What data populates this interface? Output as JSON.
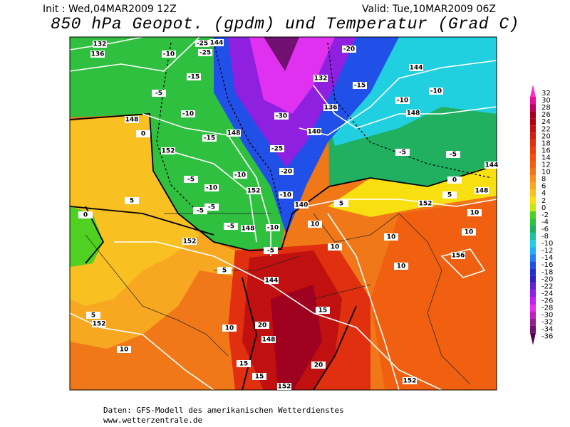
{
  "header": {
    "init": "Init : Wed,04MAR2009 12Z",
    "valid": "Valid: Tue,10MAR2009 06Z",
    "title": "850 hPa Geopot. (gpdm) und Temperatur (Grad C)"
  },
  "colorbar": {
    "ticks": [
      32,
      30,
      28,
      26,
      24,
      22,
      20,
      18,
      16,
      14,
      12,
      10,
      8,
      6,
      4,
      2,
      0,
      -2,
      -4,
      -6,
      -8,
      -10,
      -12,
      -14,
      -16,
      -18,
      -20,
      -22,
      -24,
      -26,
      -28,
      -30,
      -32,
      -34,
      -36
    ],
    "colors": [
      "#ff2dc8",
      "#e8109a",
      "#c00060",
      "#a00020",
      "#b00010",
      "#c01010",
      "#d02010",
      "#e03010",
      "#e84010",
      "#f05010",
      "#f06010",
      "#f07818",
      "#f89020",
      "#f8a820",
      "#f8c020",
      "#f8e010",
      "#c8e810",
      "#50d020",
      "#30c040",
      "#20b060",
      "#20c0a0",
      "#20d0e0",
      "#20b0f0",
      "#2080f0",
      "#2050e8",
      "#2030d0",
      "#3020c0",
      "#6020d0",
      "#9020e0",
      "#c020f0",
      "#e030f0",
      "#c020c0",
      "#902090",
      "#701070",
      "#500050"
    ]
  },
  "map": {
    "geopotential_labels": [
      132,
      136,
      144,
      132,
      136,
      140,
      148,
      152,
      148,
      152,
      140,
      148,
      144,
      148,
      152,
      156,
      148,
      144,
      152,
      144,
      148,
      152,
      152,
      152
    ],
    "temperature_labels": [
      -25,
      -25,
      -10,
      -15,
      -5,
      -10,
      -15,
      0,
      -20,
      -15,
      -10,
      -10,
      -30,
      -25,
      -20,
      -10,
      -5,
      -5,
      0,
      5,
      10,
      10,
      -10,
      -10,
      -5,
      -5,
      -5,
      -5,
      -10,
      10,
      5,
      -5,
      10,
      10,
      10,
      5,
      5,
      0,
      15,
      20,
      10,
      10,
      15,
      15,
      20,
      5
    ]
  },
  "footer": {
    "source": "Daten: GFS-Modell des amerikanischen Wetterdienstes",
    "url": "www.wetterzentrale.de"
  }
}
